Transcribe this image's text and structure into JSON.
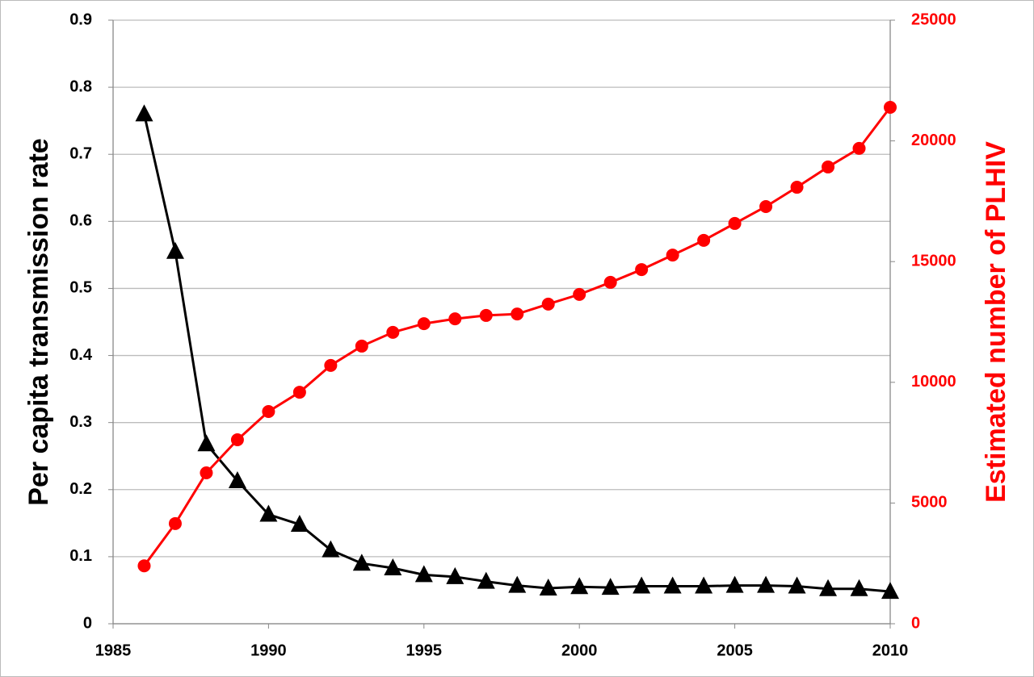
{
  "chart_data": {
    "type": "line",
    "ylabel": "Per capita transmission rate",
    "y2label": "Estimated number of PLHIV",
    "x": [
      1986,
      1987,
      1988,
      1989,
      1990,
      1991,
      1992,
      1993,
      1994,
      1995,
      1996,
      1997,
      1998,
      1999,
      2000,
      2001,
      2002,
      2003,
      2004,
      2005,
      2006,
      2007,
      2008,
      2009,
      2010
    ],
    "series": [
      {
        "color": "#000000",
        "marker": "triangle",
        "values": [
          0.76,
          0.555,
          0.268,
          0.213,
          0.163,
          0.148,
          0.11,
          0.09,
          0.083,
          0.073,
          0.07,
          0.063,
          0.057,
          0.053,
          0.055,
          0.054,
          0.056,
          0.056,
          0.056,
          0.057,
          0.057,
          0.056,
          0.052,
          0.052,
          0.048
        ]
      },
      {
        "color": "#ff0000",
        "marker": "circle",
        "axis": "y2",
        "values": [
          2400,
          4150,
          6250,
          7620,
          8790,
          9590,
          10700,
          11500,
          12070,
          12430,
          12630,
          12770,
          12830,
          13240,
          13640,
          14140,
          14670,
          15270,
          15880,
          16580,
          17280,
          18080,
          18920,
          19690,
          21390
        ]
      }
    ],
    "xlim": [
      1985,
      2010
    ],
    "xticks": [
      1985,
      1990,
      1995,
      2000,
      2005,
      2010
    ],
    "ylim": [
      0,
      0.9
    ],
    "yticks": [
      0,
      0.1,
      0.2,
      0.3,
      0.4,
      0.5,
      0.6,
      0.7,
      0.8,
      0.9
    ],
    "y2lim": [
      0,
      25000
    ],
    "y2ticks": [
      0,
      5000,
      10000,
      15000,
      20000,
      25000
    ],
    "y2color": "#ff0000",
    "grid": true
  }
}
